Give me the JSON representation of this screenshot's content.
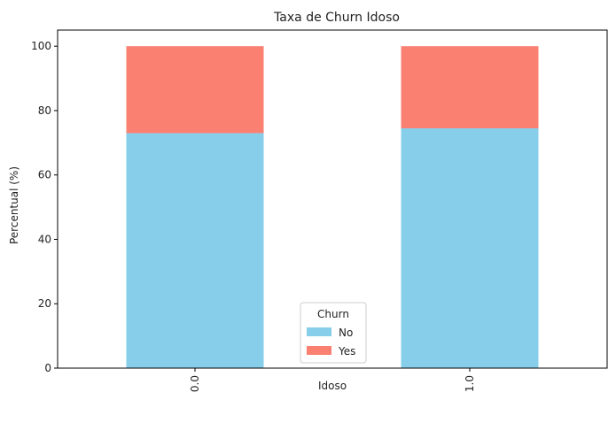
{
  "chart_data": {
    "type": "bar",
    "stacked": true,
    "title": "Taxa de Churn Idoso",
    "xlabel": "Idoso",
    "ylabel": "Percentual (%)",
    "categories": [
      "0.0",
      "1.0"
    ],
    "series": [
      {
        "name": "No",
        "values": [
          73.0,
          74.5
        ],
        "color": "#87CEEB"
      },
      {
        "name": "Yes",
        "values": [
          27.0,
          25.5
        ],
        "color": "#FA8072"
      }
    ],
    "ylim": [
      0,
      105
    ],
    "yticks": [
      0,
      20,
      40,
      60,
      80,
      100
    ],
    "legend": {
      "title": "Churn",
      "placement": "lower-center"
    },
    "grid": false
  }
}
